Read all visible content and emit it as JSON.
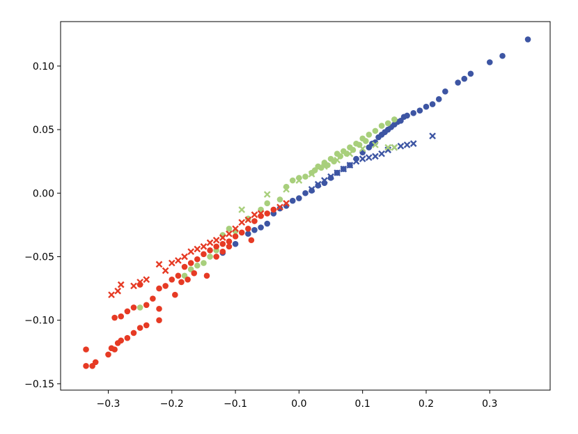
{
  "chart_data": {
    "type": "scatter",
    "title": "",
    "xlabel": "",
    "ylabel": "",
    "xlim": [
      -0.375,
      0.395
    ],
    "ylim": [
      -0.155,
      0.135
    ],
    "x_ticks": [
      -0.3,
      -0.2,
      -0.1,
      0.0,
      0.1,
      0.2,
      0.3
    ],
    "x_tick_labels": [
      "−0.3",
      "−0.2",
      "−0.1",
      "0.0",
      "0.1",
      "0.2",
      "0.3"
    ],
    "y_ticks": [
      -0.15,
      -0.1,
      -0.05,
      0.0,
      0.05,
      0.1
    ],
    "y_tick_labels": [
      "−0.15",
      "−0.10",
      "−0.05",
      "0.00",
      "0.05",
      "0.10"
    ],
    "grid": false,
    "legend": "none",
    "series": [
      {
        "color": "#3d55a3",
        "marker": "circle",
        "points": [
          [
            -0.12,
            -0.047
          ],
          [
            -0.1,
            -0.04
          ],
          [
            -0.08,
            -0.032
          ],
          [
            -0.07,
            -0.029
          ],
          [
            -0.06,
            -0.027
          ],
          [
            -0.05,
            -0.024
          ],
          [
            -0.04,
            -0.016
          ],
          [
            -0.03,
            -0.012
          ],
          [
            -0.02,
            -0.01
          ],
          [
            -0.01,
            -0.006
          ],
          [
            0.0,
            -0.004
          ],
          [
            0.01,
            0.0
          ],
          [
            0.02,
            0.002
          ],
          [
            0.03,
            0.006
          ],
          [
            0.04,
            0.008
          ],
          [
            0.05,
            0.012
          ],
          [
            0.06,
            0.016
          ],
          [
            0.07,
            0.019
          ],
          [
            0.08,
            0.022
          ],
          [
            0.09,
            0.027
          ],
          [
            0.1,
            0.032
          ],
          [
            0.11,
            0.036
          ],
          [
            0.115,
            0.039
          ],
          [
            0.12,
            0.04
          ],
          [
            0.125,
            0.044
          ],
          [
            0.13,
            0.046
          ],
          [
            0.135,
            0.048
          ],
          [
            0.14,
            0.05
          ],
          [
            0.145,
            0.052
          ],
          [
            0.15,
            0.054
          ],
          [
            0.155,
            0.056
          ],
          [
            0.16,
            0.057
          ],
          [
            0.165,
            0.06
          ],
          [
            0.17,
            0.061
          ],
          [
            0.18,
            0.063
          ],
          [
            0.19,
            0.065
          ],
          [
            0.2,
            0.068
          ],
          [
            0.21,
            0.07
          ],
          [
            0.22,
            0.074
          ],
          [
            0.23,
            0.08
          ],
          [
            0.25,
            0.087
          ],
          [
            0.26,
            0.09
          ],
          [
            0.27,
            0.094
          ],
          [
            0.3,
            0.103
          ],
          [
            0.32,
            0.108
          ],
          [
            0.36,
            0.121
          ]
        ]
      },
      {
        "color": "#3d55a3",
        "marker": "x",
        "points": [
          [
            0.02,
            0.003
          ],
          [
            0.03,
            0.007
          ],
          [
            0.04,
            0.01
          ],
          [
            0.05,
            0.013
          ],
          [
            0.06,
            0.016
          ],
          [
            0.07,
            0.019
          ],
          [
            0.08,
            0.022
          ],
          [
            0.09,
            0.025
          ],
          [
            0.1,
            0.027
          ],
          [
            0.11,
            0.028
          ],
          [
            0.12,
            0.029
          ],
          [
            0.13,
            0.031
          ],
          [
            0.14,
            0.034
          ],
          [
            0.15,
            0.036
          ],
          [
            0.16,
            0.037
          ],
          [
            0.17,
            0.038
          ],
          [
            0.18,
            0.039
          ],
          [
            0.21,
            0.045
          ]
        ]
      },
      {
        "color": "#a8cf7c",
        "marker": "circle",
        "points": [
          [
            -0.25,
            -0.09
          ],
          [
            -0.18,
            -0.065
          ],
          [
            -0.17,
            -0.06
          ],
          [
            -0.16,
            -0.057
          ],
          [
            -0.15,
            -0.055
          ],
          [
            -0.14,
            -0.05
          ],
          [
            -0.13,
            -0.045
          ],
          [
            -0.12,
            -0.033
          ],
          [
            -0.11,
            -0.028
          ],
          [
            -0.1,
            -0.03
          ],
          [
            -0.08,
            -0.02
          ],
          [
            -0.06,
            -0.013
          ],
          [
            -0.05,
            -0.008
          ],
          [
            -0.03,
            -0.005
          ],
          [
            -0.02,
            0.005
          ],
          [
            -0.01,
            0.01
          ],
          [
            0.0,
            0.012
          ],
          [
            0.01,
            0.013
          ],
          [
            0.02,
            0.016
          ],
          [
            0.025,
            0.018
          ],
          [
            0.03,
            0.021
          ],
          [
            0.035,
            0.02
          ],
          [
            0.04,
            0.024
          ],
          [
            0.045,
            0.022
          ],
          [
            0.05,
            0.027
          ],
          [
            0.055,
            0.025
          ],
          [
            0.06,
            0.031
          ],
          [
            0.065,
            0.029
          ],
          [
            0.07,
            0.033
          ],
          [
            0.075,
            0.031
          ],
          [
            0.08,
            0.036
          ],
          [
            0.085,
            0.034
          ],
          [
            0.09,
            0.039
          ],
          [
            0.095,
            0.038
          ],
          [
            0.1,
            0.043
          ],
          [
            0.105,
            0.041
          ],
          [
            0.11,
            0.046
          ],
          [
            0.12,
            0.049
          ],
          [
            0.13,
            0.053
          ],
          [
            0.14,
            0.055
          ],
          [
            0.15,
            0.058
          ]
        ]
      },
      {
        "color": "#a8cf7c",
        "marker": "x",
        "points": [
          [
            -0.09,
            -0.013
          ],
          [
            -0.05,
            -0.001
          ],
          [
            -0.02,
            0.003
          ],
          [
            0.0,
            0.01
          ],
          [
            0.02,
            0.015
          ],
          [
            0.04,
            0.021
          ],
          [
            0.06,
            0.026
          ],
          [
            0.08,
            0.031
          ],
          [
            0.1,
            0.035
          ],
          [
            0.12,
            0.038
          ],
          [
            0.14,
            0.036
          ],
          [
            0.15,
            0.036
          ]
        ]
      },
      {
        "color": "#e63a24",
        "marker": "circle",
        "points": [
          [
            -0.335,
            -0.136
          ],
          [
            -0.335,
            -0.123
          ],
          [
            -0.325,
            -0.136
          ],
          [
            -0.32,
            -0.133
          ],
          [
            -0.3,
            -0.127
          ],
          [
            -0.295,
            -0.122
          ],
          [
            -0.29,
            -0.123
          ],
          [
            -0.285,
            -0.118
          ],
          [
            -0.28,
            -0.116
          ],
          [
            -0.27,
            -0.114
          ],
          [
            -0.26,
            -0.11
          ],
          [
            -0.25,
            -0.106
          ],
          [
            -0.24,
            -0.104
          ],
          [
            -0.22,
            -0.1
          ],
          [
            -0.29,
            -0.098
          ],
          [
            -0.28,
            -0.097
          ],
          [
            -0.27,
            -0.093
          ],
          [
            -0.26,
            -0.09
          ],
          [
            -0.24,
            -0.088
          ],
          [
            -0.22,
            -0.091
          ],
          [
            -0.23,
            -0.083
          ],
          [
            -0.22,
            -0.075
          ],
          [
            -0.21,
            -0.073
          ],
          [
            -0.2,
            -0.068
          ],
          [
            -0.19,
            -0.065
          ],
          [
            -0.18,
            -0.058
          ],
          [
            -0.17,
            -0.055
          ],
          [
            -0.16,
            -0.052
          ],
          [
            -0.15,
            -0.048
          ],
          [
            -0.14,
            -0.045
          ],
          [
            -0.13,
            -0.042
          ],
          [
            -0.12,
            -0.04
          ],
          [
            -0.11,
            -0.038
          ],
          [
            -0.1,
            -0.034
          ],
          [
            -0.09,
            -0.031
          ],
          [
            -0.08,
            -0.028
          ],
          [
            -0.07,
            -0.022
          ],
          [
            -0.06,
            -0.018
          ],
          [
            -0.05,
            -0.016
          ],
          [
            -0.04,
            -0.013
          ],
          [
            -0.195,
            -0.08
          ],
          [
            -0.185,
            -0.07
          ],
          [
            -0.175,
            -0.068
          ],
          [
            -0.165,
            -0.063
          ],
          [
            -0.145,
            -0.065
          ],
          [
            -0.13,
            -0.05
          ],
          [
            -0.12,
            -0.046
          ],
          [
            -0.11,
            -0.042
          ],
          [
            -0.075,
            -0.037
          ],
          [
            -0.25,
            -0.072
          ]
        ]
      },
      {
        "color": "#e63a24",
        "marker": "x",
        "points": [
          [
            -0.295,
            -0.08
          ],
          [
            -0.285,
            -0.077
          ],
          [
            -0.28,
            -0.072
          ],
          [
            -0.26,
            -0.073
          ],
          [
            -0.25,
            -0.07
          ],
          [
            -0.24,
            -0.068
          ],
          [
            -0.22,
            -0.056
          ],
          [
            -0.21,
            -0.061
          ],
          [
            -0.2,
            -0.055
          ],
          [
            -0.19,
            -0.053
          ],
          [
            -0.18,
            -0.05
          ],
          [
            -0.17,
            -0.046
          ],
          [
            -0.16,
            -0.044
          ],
          [
            -0.15,
            -0.042
          ],
          [
            -0.14,
            -0.039
          ],
          [
            -0.13,
            -0.037
          ],
          [
            -0.12,
            -0.035
          ],
          [
            -0.11,
            -0.032
          ],
          [
            -0.1,
            -0.028
          ],
          [
            -0.09,
            -0.023
          ],
          [
            -0.08,
            -0.021
          ],
          [
            -0.07,
            -0.017
          ],
          [
            -0.06,
            -0.016
          ],
          [
            -0.03,
            -0.011
          ],
          [
            -0.02,
            -0.008
          ]
        ]
      }
    ]
  }
}
